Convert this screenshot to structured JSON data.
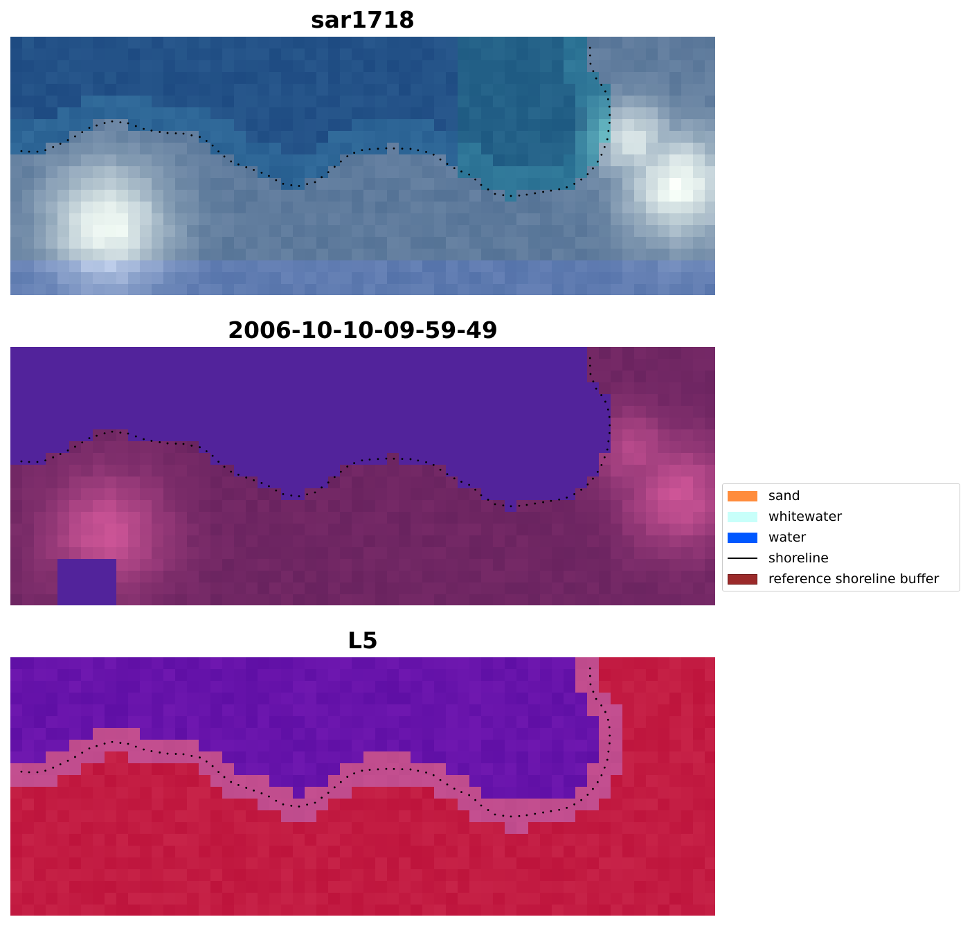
{
  "panels": [
    {
      "title": "sar1718",
      "style": "rgb"
    },
    {
      "title": "2006-10-10-09-59-49",
      "style": "classified"
    },
    {
      "title": "L5",
      "style": "index"
    }
  ],
  "legend": {
    "items": [
      {
        "label": "sand",
        "kind": "patch",
        "color": "#ff8c3c"
      },
      {
        "label": "whitewater",
        "kind": "patch",
        "color": "#c8fffa"
      },
      {
        "label": "water",
        "kind": "patch",
        "color": "#0058ff"
      },
      {
        "label": "shoreline",
        "kind": "line",
        "color": "#000000"
      },
      {
        "label": "reference shoreline buffer",
        "kind": "patch",
        "color": "#9b2a2a"
      }
    ]
  }
}
